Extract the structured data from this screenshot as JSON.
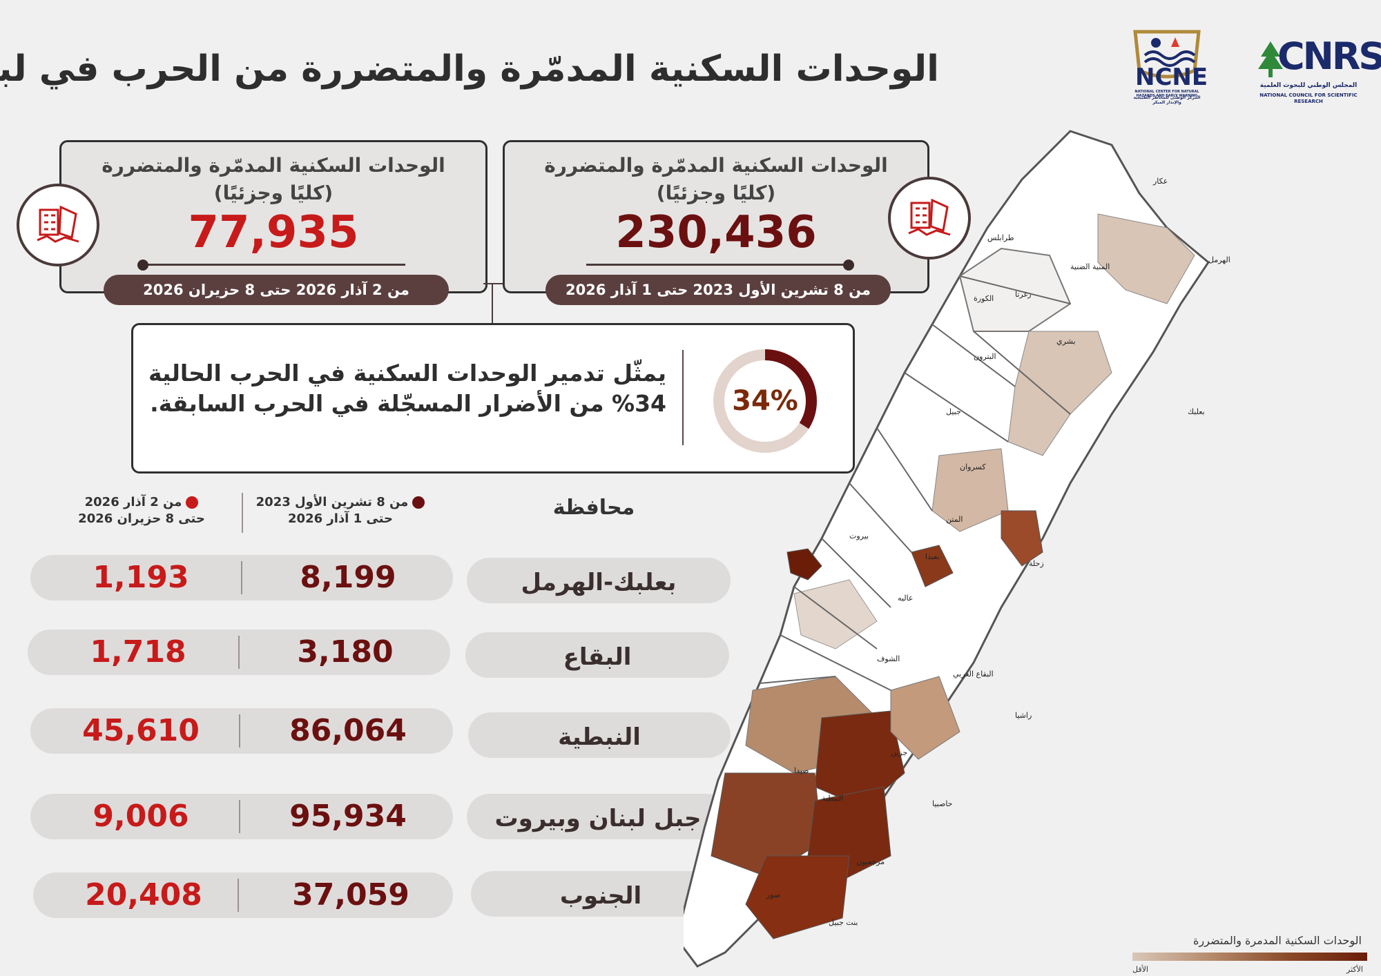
{
  "title": "الوحدات السكنية المدمّرة والمتضررة من الحرب في لبنان",
  "logos": {
    "ncne": "NCNE",
    "ncne_caption": "NATIONAL CENTER FOR NATURAL HAZARDS AND EARLY WARNING",
    "ncne_caption_ar": "المركز الوطني للمخاطر الطبيعية والإنذار المبكر",
    "cnrs": "CNRS",
    "cnrs_caption_ar": "المجلس الوطني للبحوث العلمية",
    "cnrs_caption": "NATIONAL COUNCIL FOR SCIENTIFIC RESEARCH"
  },
  "cards": [
    {
      "title_line1": "الوحدات السكنية المدمّرة والمتضررة",
      "title_line2": "(كليًا وجزئيًا)",
      "value": "230,436",
      "period": "من 8 تشرين الأول 2023 حتى 1 آذار 2026",
      "color": "#6b1010"
    },
    {
      "title_line1": "الوحدات السكنية المدمّرة والمتضررة",
      "title_line2": "(كليًا وجزئيًا)",
      "value": "77,935",
      "period": "من 2 آذار 2026 حتى 8 حزيران 2026",
      "color": "#c71a1a"
    }
  ],
  "insight": {
    "text": "يمثّل تدمير الوحدات السكنية في الحرب الحالية 34% من الأضرار المسجّلة في الحرب السابقة.",
    "percent": 34,
    "percent_label": "34%"
  },
  "table": {
    "header_gov": "محافظة",
    "header_period1_line1": "من 8 تشرين الأول 2023",
    "header_period1_line2": "حتى 1 آذار 2026",
    "header_period2_line1": "من 2 آذار 2026",
    "header_period2_line2": "حتى 8 حزيران 2026",
    "colors": {
      "period1": "#6b1010",
      "period2": "#c71a1a"
    },
    "rows": [
      {
        "gov": "بعلبك-الهرمل",
        "v1": "8,199",
        "v2": "1,193"
      },
      {
        "gov": "البقاع",
        "v1": "3,180",
        "v2": "1,718"
      },
      {
        "gov": "النبطية",
        "v1": "86,064",
        "v2": "45,610"
      },
      {
        "gov": "جبل لبنان وبيروت",
        "v1": "95,934",
        "v2": "9,006"
      },
      {
        "gov": "الجنوب",
        "v1": "37,059",
        "v2": "20,408"
      }
    ]
  },
  "map": {
    "labels": [
      "عكار",
      "الهرمل",
      "طرابلس",
      "المنية الضنية",
      "زغرتا",
      "الكورة",
      "بشري",
      "البترون",
      "جبيل",
      "بعلبك",
      "كسروان",
      "المتن",
      "بيروت",
      "بعبدا",
      "زحلة",
      "عاليه",
      "الشوف",
      "البقاع الغربي",
      "راشيا",
      "جزين",
      "صيدا",
      "النبطية",
      "حاصبيا",
      "مرجعيون",
      "صور",
      "بنت جبيل"
    ],
    "legend_title": "الوحدات السكنية المدمرة والمتضررة",
    "legend_min": "الأقل",
    "legend_max": "الأكثر"
  }
}
